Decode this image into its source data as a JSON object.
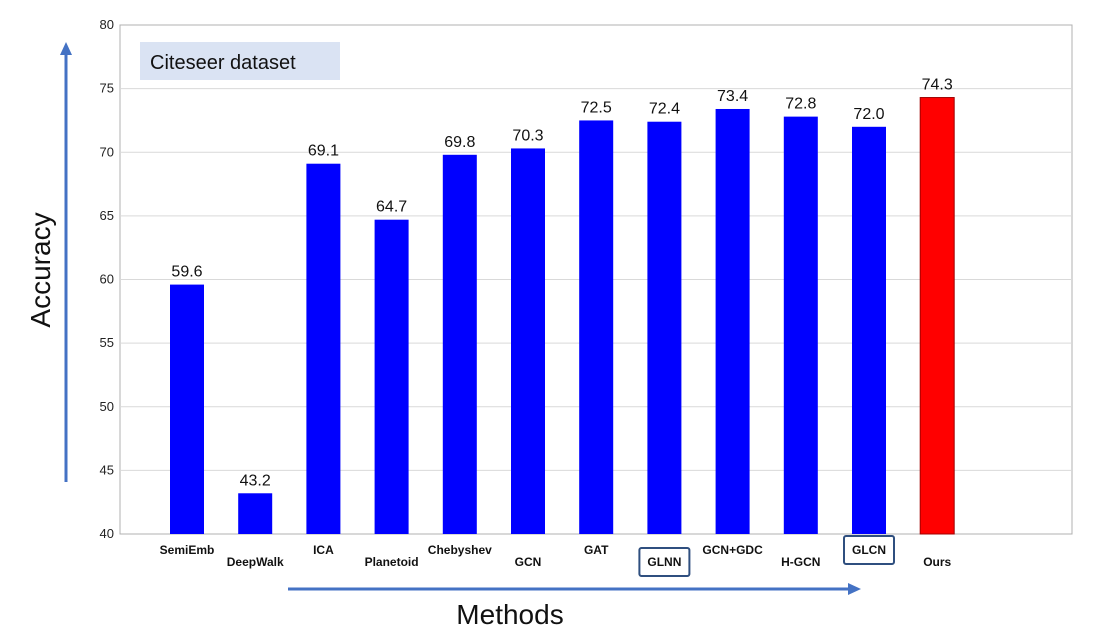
{
  "chart_data": {
    "type": "bar",
    "title_box": "Citeseer dataset",
    "xlabel": "Methods",
    "ylabel": "Accuracy",
    "ylim": [
      40,
      80
    ],
    "yticks": [
      40,
      45,
      50,
      55,
      60,
      65,
      70,
      75,
      80
    ],
    "categories": [
      "SemiEmb",
      "DeepWalk",
      "ICA",
      "Planetoid",
      "Chebyshev",
      "GCN",
      "GAT",
      "GLNN",
      "GCN+GDC",
      "H-GCN",
      "GLCN",
      "Ours"
    ],
    "values": [
      59.6,
      43.2,
      69.1,
      64.7,
      69.8,
      70.3,
      72.5,
      72.4,
      73.4,
      72.8,
      72.0,
      74.3
    ],
    "value_labels": [
      "59.6",
      "43.2",
      "69.1",
      "64.7",
      "69.8",
      "70.3",
      "72.5",
      "72.4",
      "73.4",
      "72.8",
      "72.0",
      "74.3"
    ],
    "boxed_categories": [
      "GLNN",
      "GLCN"
    ],
    "highlight_category": "Ours",
    "colors": {
      "bar": "#0000ff",
      "highlight": "#ff0000",
      "arrow": "#4472c4",
      "box_border": "#2f4f7f",
      "title_box_bg": "#dae3f3"
    },
    "grid": true
  }
}
